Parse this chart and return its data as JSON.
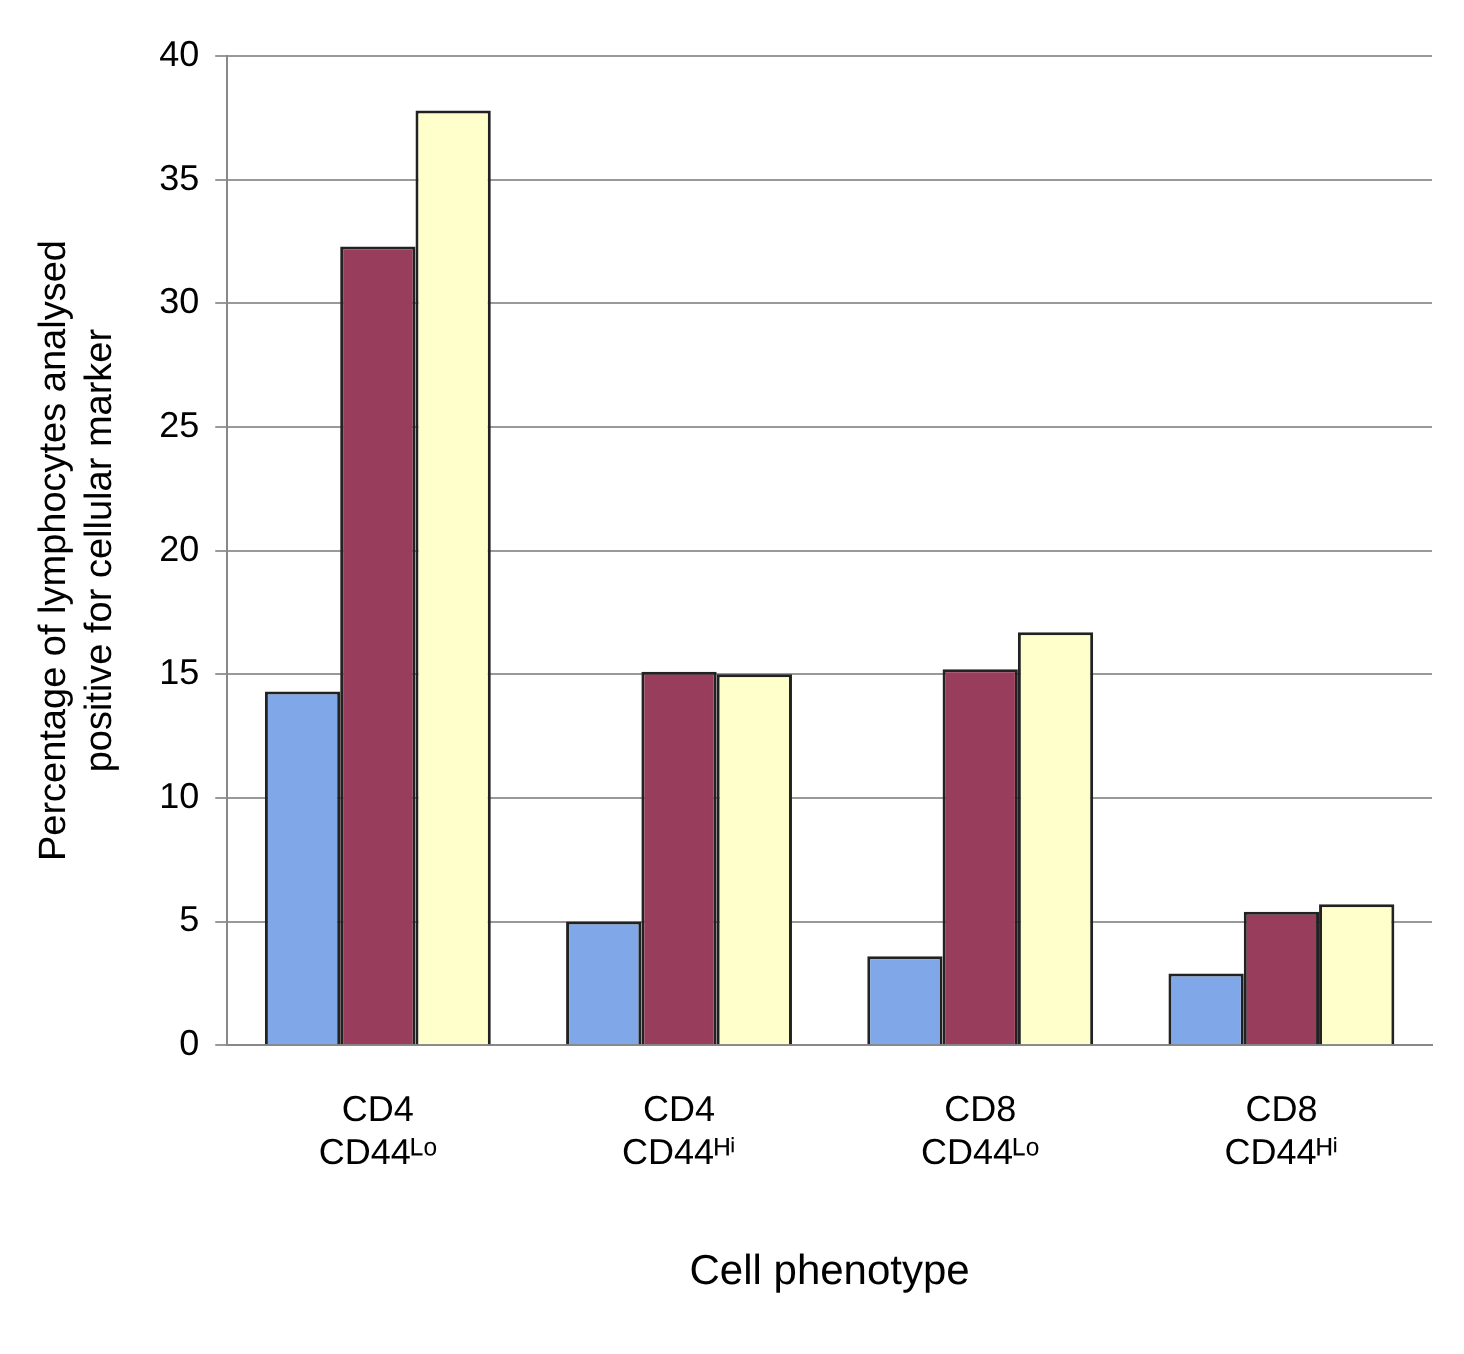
{
  "chart_data": {
    "type": "bar",
    "xlabel": "Cell phenotype",
    "ylabel": "Percentage of lymphocytes analysed positive for cellular marker",
    "categories": [
      "CD4 CD44ᴸᵒ",
      "CD4 CD44ᴴⁱ",
      "CD8 CD44ᴸᵒ",
      "CD8 CD44ᴴⁱ"
    ],
    "series": [
      {
        "color": "#80a8e8",
        "values": [
          14.3,
          5.0,
          3.6,
          2.9
        ]
      },
      {
        "color": "#993d5c",
        "values": [
          32.3,
          15.1,
          15.2,
          5.4
        ]
      },
      {
        "color": "#ffffcc",
        "values": [
          37.8,
          15.0,
          16.7,
          5.7
        ]
      }
    ],
    "ylim": [
      0,
      40
    ],
    "yticks": [
      0,
      5,
      10,
      15,
      20,
      25,
      30,
      35,
      40
    ],
    "grid": "y",
    "legend": false
  }
}
